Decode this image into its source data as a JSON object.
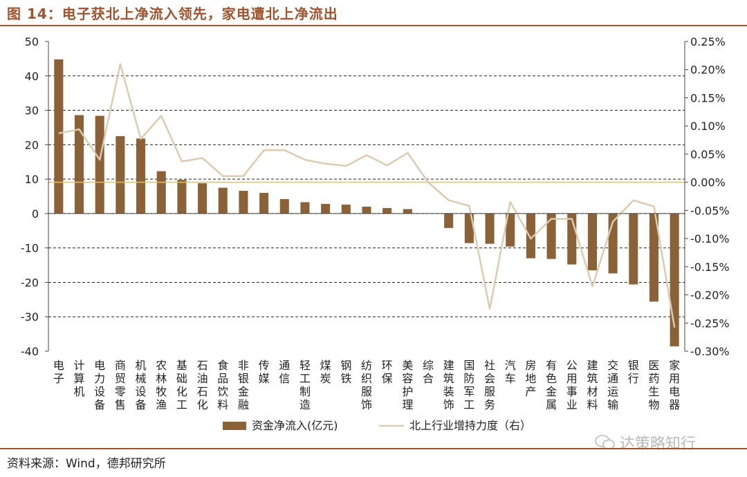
{
  "figure": {
    "title": "图 14：电子获北上净流入领先，家电遭北上净流出",
    "source": "资料来源：Wind，德邦研究所",
    "watermark": "达策略知行",
    "watermark_icon": "wechat-icon"
  },
  "colors": {
    "bar": "#8b6237",
    "line": "#ddcbb0",
    "zero_line": "#f0c04a",
    "title": "#a0522d",
    "grid": "#222222"
  },
  "chart_data": {
    "type": "bar",
    "categories": [
      "电子",
      "计算机",
      "电力设备",
      "商贸零售",
      "机械设备",
      "农林牧渔",
      "基础化工",
      "石油石化",
      "食品饮料",
      "非银金融",
      "传媒",
      "通信",
      "轻工制造",
      "煤炭",
      "钢铁",
      "纺织服饰",
      "环保",
      "美容护理",
      "综合",
      "建筑装饰",
      "国防军工",
      "社会服务",
      "汽车",
      "房地产",
      "有色金属",
      "公用事业",
      "建筑材料",
      "交通运输",
      "银行",
      "医药生物",
      "家用电器"
    ],
    "series": [
      {
        "name": "资金净流入(亿元)",
        "type": "bar",
        "axis": "left",
        "values": [
          44.8,
          28.6,
          28.4,
          22.5,
          21.8,
          12.3,
          9.8,
          8.8,
          7.5,
          6.6,
          6.0,
          4.2,
          3.3,
          2.8,
          2.6,
          2.0,
          1.6,
          1.3,
          0,
          -4.2,
          -8.6,
          -8.8,
          -9.6,
          -13.0,
          -13.2,
          -14.8,
          -16.5,
          -17.4,
          -20.6,
          -25.6,
          -38.6
        ]
      },
      {
        "name": "北上行业增持力度（右）",
        "type": "line",
        "axis": "right",
        "values": [
          0.087,
          0.094,
          0.04,
          0.21,
          0.077,
          0.118,
          0.037,
          0.043,
          0.011,
          0.011,
          0.057,
          0.057,
          0.04,
          0.033,
          0.029,
          0.048,
          0.03,
          0.052,
          0.0,
          -0.032,
          -0.042,
          -0.225,
          -0.035,
          -0.1,
          -0.065,
          -0.065,
          -0.185,
          -0.07,
          -0.032,
          -0.043,
          -0.258
        ]
      }
    ],
    "left_axis": {
      "ylim": [
        -40,
        50
      ],
      "ticks": [
        50,
        40,
        30,
        20,
        10,
        0,
        -10,
        -20,
        -30,
        -40
      ]
    },
    "right_axis": {
      "ylim": [
        -0.3,
        0.25
      ],
      "ticks": [
        "0.25%",
        "0.20%",
        "0.15%",
        "0.10%",
        "0.05%",
        "0.00%",
        "-0.05%",
        "-0.10%",
        "-0.15%",
        "-0.20%",
        "-0.25%",
        "-0.30%"
      ]
    },
    "right_tick_values": [
      0.25,
      0.2,
      0.15,
      0.1,
      0.05,
      0.0,
      -0.05,
      -0.1,
      -0.15,
      -0.2,
      -0.25,
      -0.3
    ],
    "grid": "dashed",
    "legend": {
      "position": "bottom",
      "entries": [
        "资金净流入(亿元)",
        "北上行业增持力度（右）"
      ]
    }
  }
}
